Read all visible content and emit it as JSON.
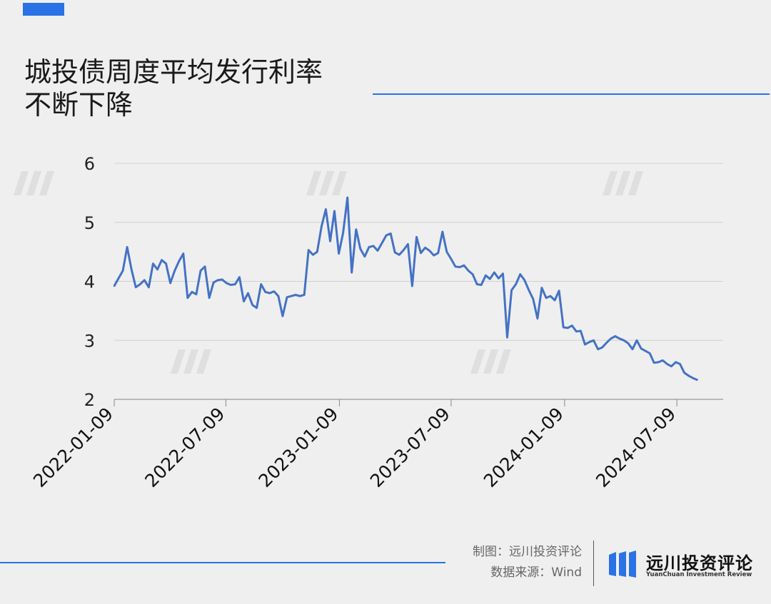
{
  "header": {
    "title_line1": "城投债周度平均发行利率",
    "title_line2": "不断下降"
  },
  "colors": {
    "accent": "#2a72e6",
    "line": "#4472c4",
    "grid": "#d0d0d0"
  },
  "footer": {
    "credit_chart": "制图：远川投资评论",
    "credit_source": "数据来源：Wind",
    "brand_name": "远川投资评论",
    "brand_sub": "YuanChuan Investment Review"
  },
  "chart_data": {
    "type": "line",
    "title": "",
    "xlabel": "",
    "ylabel": "",
    "ylim": [
      2,
      6
    ],
    "yticks": [
      2,
      3,
      4,
      5,
      6
    ],
    "xticks": [
      "2022-01-09",
      "2022-07-09",
      "2023-01-09",
      "2023-07-09",
      "2024-01-09",
      "2024-07-09"
    ],
    "x_range": [
      "2022-01-09",
      "2024-09-22"
    ],
    "grid": "horizontal",
    "legend": "none",
    "series": [
      {
        "name": "",
        "points": [
          [
            "2022-01-09",
            3.92
          ],
          [
            "2022-01-16",
            4.05
          ],
          [
            "2022-01-23",
            4.18
          ],
          [
            "2022-01-30",
            4.58
          ],
          [
            "2022-02-06",
            4.2
          ],
          [
            "2022-02-13",
            3.9
          ],
          [
            "2022-02-20",
            3.95
          ],
          [
            "2022-02-27",
            4.02
          ],
          [
            "2022-03-06",
            3.9
          ],
          [
            "2022-03-13",
            4.3
          ],
          [
            "2022-03-20",
            4.2
          ],
          [
            "2022-03-27",
            4.36
          ],
          [
            "2022-04-03",
            4.3
          ],
          [
            "2022-04-10",
            3.97
          ],
          [
            "2022-04-17",
            4.18
          ],
          [
            "2022-04-24",
            4.34
          ],
          [
            "2022-05-01",
            4.47
          ],
          [
            "2022-05-08",
            3.72
          ],
          [
            "2022-05-15",
            3.82
          ],
          [
            "2022-05-22",
            3.78
          ],
          [
            "2022-05-29",
            4.18
          ],
          [
            "2022-06-05",
            4.25
          ],
          [
            "2022-06-12",
            3.72
          ],
          [
            "2022-06-19",
            3.98
          ],
          [
            "2022-06-26",
            4.02
          ],
          [
            "2022-07-03",
            4.03
          ],
          [
            "2022-07-10",
            3.97
          ],
          [
            "2022-07-17",
            3.94
          ],
          [
            "2022-07-24",
            3.95
          ],
          [
            "2022-07-31",
            4.07
          ],
          [
            "2022-08-07",
            3.66
          ],
          [
            "2022-08-14",
            3.8
          ],
          [
            "2022-08-21",
            3.6
          ],
          [
            "2022-08-28",
            3.55
          ],
          [
            "2022-09-04",
            3.95
          ],
          [
            "2022-09-11",
            3.82
          ],
          [
            "2022-09-18",
            3.8
          ],
          [
            "2022-09-25",
            3.83
          ],
          [
            "2022-10-02",
            3.75
          ],
          [
            "2022-10-09",
            3.41
          ],
          [
            "2022-10-16",
            3.73
          ],
          [
            "2022-10-23",
            3.75
          ],
          [
            "2022-10-30",
            3.77
          ],
          [
            "2022-11-06",
            3.75
          ],
          [
            "2022-11-13",
            3.77
          ],
          [
            "2022-11-20",
            4.53
          ],
          [
            "2022-11-27",
            4.45
          ],
          [
            "2022-12-04",
            4.5
          ],
          [
            "2022-12-11",
            4.93
          ],
          [
            "2022-12-18",
            5.22
          ],
          [
            "2022-12-25",
            4.68
          ],
          [
            "2023-01-01",
            5.19
          ],
          [
            "2023-01-08",
            4.47
          ],
          [
            "2023-01-15",
            4.82
          ],
          [
            "2023-01-22",
            5.42
          ],
          [
            "2023-01-29",
            4.15
          ],
          [
            "2023-02-05",
            4.88
          ],
          [
            "2023-02-12",
            4.55
          ],
          [
            "2023-02-19",
            4.42
          ],
          [
            "2023-02-26",
            4.58
          ],
          [
            "2023-03-05",
            4.6
          ],
          [
            "2023-03-12",
            4.52
          ],
          [
            "2023-03-19",
            4.65
          ],
          [
            "2023-03-26",
            4.78
          ],
          [
            "2023-04-02",
            4.81
          ],
          [
            "2023-04-09",
            4.49
          ],
          [
            "2023-04-16",
            4.45
          ],
          [
            "2023-04-23",
            4.53
          ],
          [
            "2023-04-30",
            4.63
          ],
          [
            "2023-05-07",
            3.92
          ],
          [
            "2023-05-14",
            4.75
          ],
          [
            "2023-05-21",
            4.48
          ],
          [
            "2023-05-28",
            4.57
          ],
          [
            "2023-06-04",
            4.52
          ],
          [
            "2023-06-11",
            4.44
          ],
          [
            "2023-06-18",
            4.48
          ],
          [
            "2023-06-25",
            4.84
          ],
          [
            "2023-07-02",
            4.5
          ],
          [
            "2023-07-09",
            4.38
          ],
          [
            "2023-07-16",
            4.25
          ],
          [
            "2023-07-23",
            4.24
          ],
          [
            "2023-07-30",
            4.27
          ],
          [
            "2023-08-06",
            4.18
          ],
          [
            "2023-08-13",
            4.12
          ],
          [
            "2023-08-20",
            3.95
          ],
          [
            "2023-08-27",
            3.94
          ],
          [
            "2023-09-03",
            4.1
          ],
          [
            "2023-09-10",
            4.04
          ],
          [
            "2023-09-17",
            4.15
          ],
          [
            "2023-09-24",
            4.05
          ],
          [
            "2023-10-01",
            4.13
          ],
          [
            "2023-10-08",
            3.05
          ],
          [
            "2023-10-15",
            3.85
          ],
          [
            "2023-10-22",
            3.95
          ],
          [
            "2023-10-29",
            4.12
          ],
          [
            "2023-11-05",
            4.02
          ],
          [
            "2023-11-12",
            3.85
          ],
          [
            "2023-11-19",
            3.7
          ],
          [
            "2023-11-26",
            3.37
          ],
          [
            "2023-12-03",
            3.89
          ],
          [
            "2023-12-10",
            3.72
          ],
          [
            "2023-12-17",
            3.75
          ],
          [
            "2023-12-24",
            3.68
          ],
          [
            "2023-12-31",
            3.84
          ],
          [
            "2024-01-07",
            3.22
          ],
          [
            "2024-01-14",
            3.21
          ],
          [
            "2024-01-21",
            3.25
          ],
          [
            "2024-01-28",
            3.15
          ],
          [
            "2024-02-04",
            3.16
          ],
          [
            "2024-02-11",
            2.93
          ],
          [
            "2024-02-18",
            2.97
          ],
          [
            "2024-02-25",
            3.0
          ],
          [
            "2024-03-03",
            2.85
          ],
          [
            "2024-03-10",
            2.88
          ],
          [
            "2024-03-17",
            2.96
          ],
          [
            "2024-03-24",
            3.03
          ],
          [
            "2024-03-31",
            3.07
          ],
          [
            "2024-04-07",
            3.03
          ],
          [
            "2024-04-14",
            3.0
          ],
          [
            "2024-04-21",
            2.95
          ],
          [
            "2024-04-28",
            2.85
          ],
          [
            "2024-05-05",
            3.0
          ],
          [
            "2024-05-12",
            2.86
          ],
          [
            "2024-05-19",
            2.82
          ],
          [
            "2024-05-26",
            2.78
          ],
          [
            "2024-06-02",
            2.62
          ],
          [
            "2024-06-09",
            2.63
          ],
          [
            "2024-06-16",
            2.66
          ],
          [
            "2024-06-23",
            2.6
          ],
          [
            "2024-06-30",
            2.56
          ],
          [
            "2024-07-07",
            2.63
          ],
          [
            "2024-07-14",
            2.6
          ],
          [
            "2024-07-21",
            2.45
          ],
          [
            "2024-07-28",
            2.4
          ],
          [
            "2024-08-04",
            2.36
          ],
          [
            "2024-08-11",
            2.33
          ]
        ]
      }
    ]
  }
}
